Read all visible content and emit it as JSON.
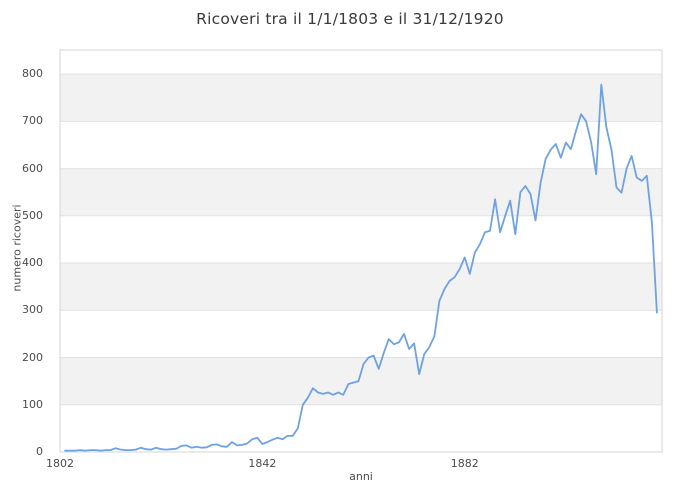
{
  "chart_data": {
    "type": "line",
    "title": "Ricoveri tra il 1/1/1803 e il 31/12/1920",
    "xlabel": "anni",
    "ylabel": "numero ricoveri",
    "legend": "none",
    "grid": {
      "horizontal_gridlines": true,
      "vertical_gridlines": false,
      "bands": [
        [
          100,
          200
        ],
        [
          300,
          400
        ],
        [
          500,
          600
        ],
        [
          700,
          800
        ]
      ]
    },
    "xlim": [
      1802,
      1921
    ],
    "ylim": [
      0,
      851
    ],
    "xticks": [
      1802,
      1842,
      1882
    ],
    "yticks": [
      0,
      100,
      200,
      300,
      400,
      500,
      600,
      700,
      800
    ],
    "colors": {
      "line": "#6ea2e5",
      "band": "#f2f2f2",
      "gridline": "#e2e2e2",
      "frame": "#d6d6d6",
      "title_text": "#3b3b3b",
      "tick_text": "#4c4c4c"
    },
    "x": [
      1803,
      1804,
      1805,
      1806,
      1807,
      1808,
      1809,
      1810,
      1811,
      1812,
      1813,
      1814,
      1815,
      1816,
      1817,
      1818,
      1819,
      1820,
      1821,
      1822,
      1823,
      1824,
      1825,
      1826,
      1827,
      1828,
      1829,
      1830,
      1831,
      1832,
      1833,
      1834,
      1835,
      1836,
      1837,
      1838,
      1839,
      1840,
      1841,
      1842,
      1843,
      1844,
      1845,
      1846,
      1847,
      1848,
      1849,
      1850,
      1851,
      1852,
      1853,
      1854,
      1855,
      1856,
      1857,
      1858,
      1859,
      1860,
      1861,
      1862,
      1863,
      1864,
      1865,
      1866,
      1867,
      1868,
      1869,
      1870,
      1871,
      1872,
      1873,
      1874,
      1875,
      1876,
      1877,
      1878,
      1879,
      1880,
      1881,
      1882,
      1883,
      1884,
      1885,
      1886,
      1887,
      1888,
      1889,
      1890,
      1891,
      1892,
      1893,
      1894,
      1895,
      1896,
      1897,
      1898,
      1899,
      1900,
      1901,
      1902,
      1903,
      1904,
      1905,
      1906,
      1907,
      1908,
      1909,
      1910,
      1911,
      1912,
      1913,
      1914,
      1915,
      1916,
      1917,
      1918,
      1919,
      1920
    ],
    "values": [
      3,
      3,
      3,
      4,
      3,
      4,
      4,
      3,
      4,
      4,
      8,
      5,
      4,
      4,
      5,
      9,
      6,
      5,
      9,
      6,
      5,
      6,
      7,
      13,
      14,
      9,
      11,
      9,
      10,
      15,
      16,
      12,
      11,
      21,
      14,
      15,
      18,
      27,
      30,
      17,
      21,
      26,
      30,
      27,
      34,
      34,
      50,
      100,
      115,
      135,
      126,
      123,
      126,
      121,
      126,
      121,
      144,
      147,
      150,
      186,
      200,
      204,
      176,
      210,
      239,
      228,
      232,
      250,
      218,
      230,
      165,
      207,
      222,
      245,
      320,
      345,
      362,
      370,
      387,
      412,
      377,
      422,
      440,
      465,
      468,
      535,
      465,
      500,
      532,
      461,
      550,
      563,
      546,
      490,
      570,
      620,
      640,
      652,
      623,
      655,
      641,
      680,
      715,
      700,
      655,
      588,
      778,
      687,
      641,
      560,
      549,
      600,
      627,
      581,
      574,
      585,
      486,
      295
    ]
  }
}
